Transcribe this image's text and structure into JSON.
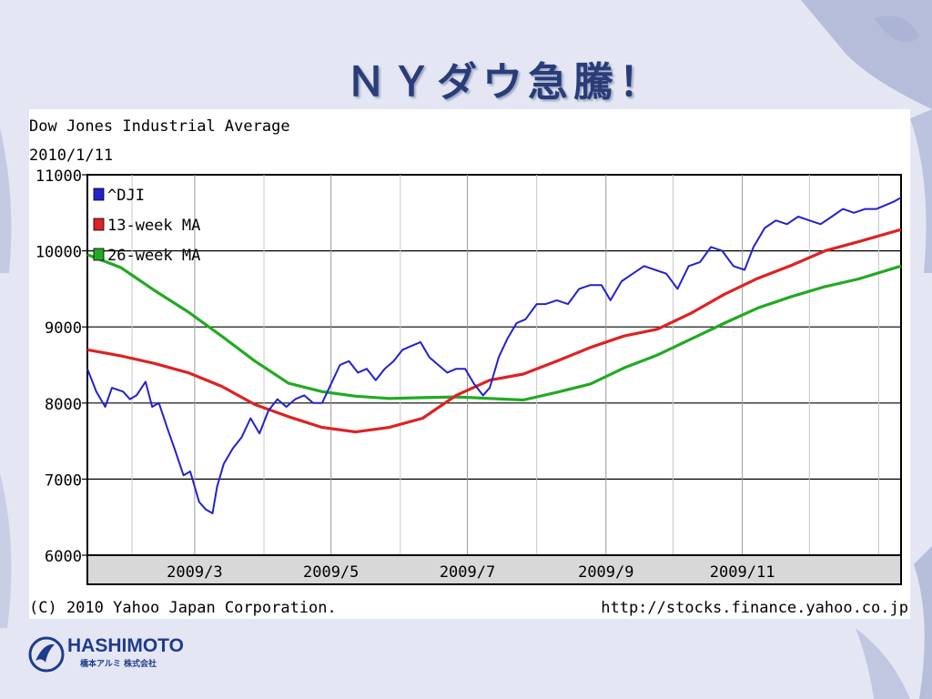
{
  "slide": {
    "title": "ＮＹダウ急騰！",
    "logo_name": "HASHIMOTO",
    "logo_sub": "橋本アルミ 株式会社",
    "title_color": "#2a3c78",
    "logo_color": "#1f3c8c"
  },
  "chart_data": {
    "type": "line",
    "title": "Dow Jones Industrial Average",
    "subtitle": "2010/1/11",
    "footer_left": "(C) 2010 Yahoo Japan Corporation.",
    "footer_right": "http://stocks.finance.yahoo.co.jp",
    "x_tick_labels": [
      "2009/3",
      "2009/5",
      "2009/7",
      "2009/9",
      "2009/11"
    ],
    "x_tick_dates": [
      "2009-03-01",
      "2009-05-01",
      "2009-07-01",
      "2009-09-01",
      "2009-11-01"
    ],
    "x_range": [
      "2009-01-12",
      "2010-01-11"
    ],
    "y_ticks": [
      6000,
      7000,
      8000,
      9000,
      10000,
      11000
    ],
    "y_tick_labels": [
      "6000",
      "7000",
      "8000",
      "9000",
      "10000",
      "11000"
    ],
    "ylim": [
      6000,
      11000
    ],
    "grid": true,
    "legend_position": "top-left",
    "series": [
      {
        "name": "^DJI",
        "color": "#2222cc",
        "x": [
          "2009-01-12",
          "2009-01-16",
          "2009-01-20",
          "2009-01-23",
          "2009-01-28",
          "2009-01-31",
          "2009-02-03",
          "2009-02-07",
          "2009-02-10",
          "2009-02-13",
          "2009-02-17",
          "2009-02-20",
          "2009-02-24",
          "2009-02-27",
          "2009-03-03",
          "2009-03-06",
          "2009-03-09",
          "2009-03-11",
          "2009-03-14",
          "2009-03-18",
          "2009-03-22",
          "2009-03-26",
          "2009-03-30",
          "2009-04-03",
          "2009-04-07",
          "2009-04-11",
          "2009-04-15",
          "2009-04-19",
          "2009-04-23",
          "2009-04-27",
          "2009-05-01",
          "2009-05-05",
          "2009-05-09",
          "2009-05-13",
          "2009-05-17",
          "2009-05-21",
          "2009-05-25",
          "2009-05-29",
          "2009-06-02",
          "2009-06-06",
          "2009-06-10",
          "2009-06-14",
          "2009-06-18",
          "2009-06-22",
          "2009-06-26",
          "2009-06-30",
          "2009-07-04",
          "2009-07-08",
          "2009-07-11",
          "2009-07-15",
          "2009-07-19",
          "2009-07-23",
          "2009-07-27",
          "2009-08-01",
          "2009-08-05",
          "2009-08-10",
          "2009-08-15",
          "2009-08-20",
          "2009-08-25",
          "2009-08-30",
          "2009-09-03",
          "2009-09-08",
          "2009-09-13",
          "2009-09-18",
          "2009-09-23",
          "2009-09-28",
          "2009-10-03",
          "2009-10-08",
          "2009-10-13",
          "2009-10-18",
          "2009-10-23",
          "2009-10-28",
          "2009-11-02",
          "2009-11-06",
          "2009-11-11",
          "2009-11-16",
          "2009-11-21",
          "2009-11-26",
          "2009-12-01",
          "2009-12-06",
          "2009-12-11",
          "2009-12-16",
          "2009-12-21",
          "2009-12-26",
          "2009-12-31",
          "2010-01-04",
          "2010-01-08",
          "2010-01-11"
        ],
        "values": [
          8450,
          8150,
          7950,
          8200,
          8150,
          8050,
          8100,
          8280,
          7950,
          8000,
          7650,
          7400,
          7050,
          7100,
          6700,
          6600,
          6550,
          6900,
          7200,
          7400,
          7550,
          7800,
          7600,
          7900,
          8050,
          7950,
          8050,
          8100,
          8000,
          8000,
          8250,
          8500,
          8550,
          8400,
          8450,
          8300,
          8450,
          8550,
          8700,
          8750,
          8800,
          8600,
          8500,
          8400,
          8450,
          8450,
          8250,
          8100,
          8200,
          8600,
          8850,
          9050,
          9100,
          9300,
          9300,
          9350,
          9300,
          9500,
          9550,
          9550,
          9350,
          9600,
          9700,
          9800,
          9750,
          9700,
          9500,
          9800,
          9850,
          10050,
          10000,
          9800,
          9750,
          10050,
          10300,
          10400,
          10350,
          10450,
          10400,
          10350,
          10450,
          10550,
          10500,
          10550,
          10550,
          10600,
          10650,
          10700
        ]
      },
      {
        "name": "13-week MA",
        "color": "#dd2222",
        "x": [
          "2009-01-12",
          "2009-01-27",
          "2009-02-11",
          "2009-02-26",
          "2009-03-13",
          "2009-03-28",
          "2009-04-12",
          "2009-04-27",
          "2009-05-12",
          "2009-05-27",
          "2009-06-11",
          "2009-06-26",
          "2009-07-11",
          "2009-07-26",
          "2009-08-10",
          "2009-08-25",
          "2009-09-09",
          "2009-09-24",
          "2009-10-09",
          "2009-10-24",
          "2009-11-08",
          "2009-11-23",
          "2009-12-08",
          "2009-12-23",
          "2010-01-11"
        ],
        "values": [
          8700,
          8620,
          8520,
          8400,
          8220,
          7980,
          7820,
          7680,
          7620,
          7680,
          7800,
          8100,
          8300,
          8380,
          8550,
          8730,
          8880,
          8970,
          9180,
          9430,
          9640,
          9810,
          10000,
          10120,
          10280
        ]
      },
      {
        "name": "26-week MA",
        "color": "#22aa22",
        "x": [
          "2009-01-12",
          "2009-01-27",
          "2009-02-11",
          "2009-02-26",
          "2009-03-13",
          "2009-03-28",
          "2009-04-12",
          "2009-04-27",
          "2009-05-12",
          "2009-05-27",
          "2009-06-11",
          "2009-06-26",
          "2009-07-11",
          "2009-07-26",
          "2009-08-10",
          "2009-08-25",
          "2009-09-09",
          "2009-09-24",
          "2009-10-09",
          "2009-10-24",
          "2009-11-08",
          "2009-11-23",
          "2009-12-08",
          "2009-12-23",
          "2010-01-11"
        ],
        "values": [
          9950,
          9780,
          9480,
          9200,
          8880,
          8550,
          8260,
          8150,
          8090,
          8060,
          8070,
          8080,
          8060,
          8040,
          8140,
          8250,
          8460,
          8630,
          8840,
          9050,
          9250,
          9400,
          9530,
          9630,
          9800
        ]
      }
    ]
  }
}
